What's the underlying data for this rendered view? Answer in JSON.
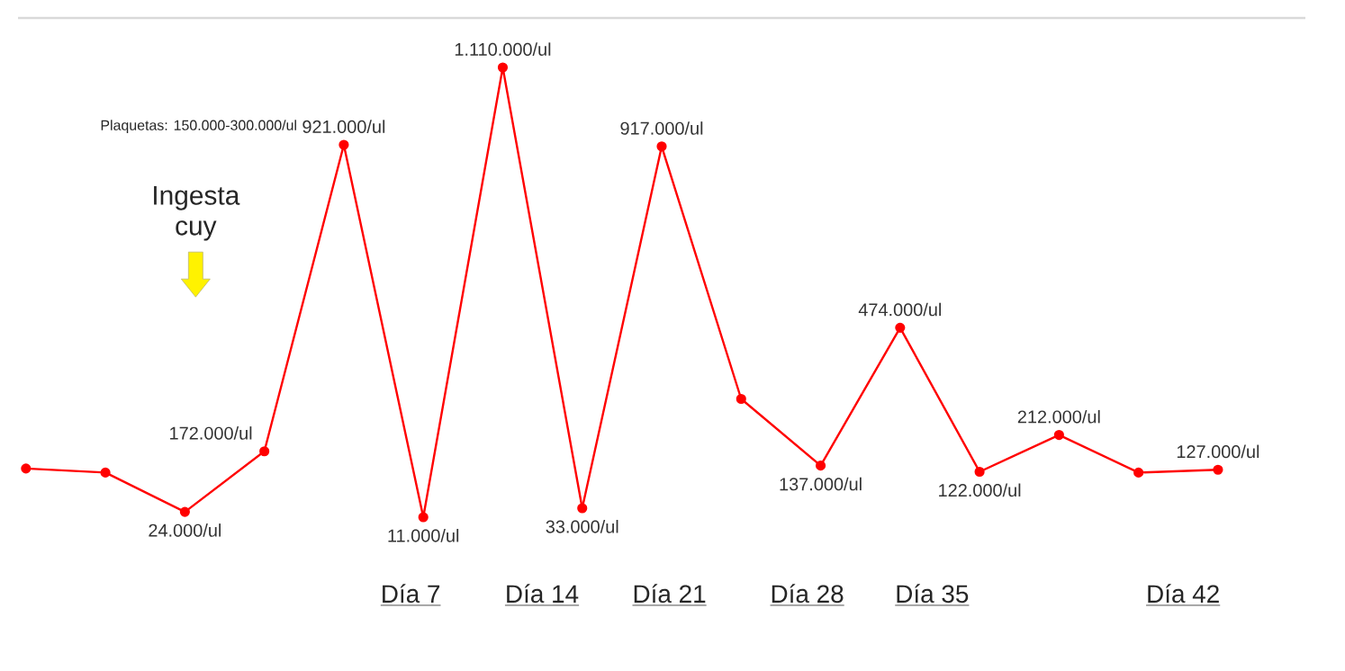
{
  "chart_data": {
    "type": "line",
    "categories": [
      null,
      null,
      null,
      null,
      null,
      null,
      null,
      null,
      null,
      null,
      null,
      null,
      null,
      null,
      null,
      null
    ],
    "series": [
      {
        "color": "#ff0000",
        "values": [
          130000,
          120000,
          24000,
          172000,
          921000,
          11000,
          1110000,
          33000,
          917000,
          300000,
          137000,
          474000,
          122000,
          212000,
          120000,
          127000
        ],
        "value_labels": [
          null,
          null,
          "24.000/ul",
          "172.000/ul",
          "921.000/ul",
          "11.000/ul",
          "1.110.000/ul",
          "33.000/ul",
          "917.000/ul",
          null,
          "137.000/ul",
          "474.000/ul",
          "122.000/ul",
          "212.000/ul",
          null,
          "127.000/ul"
        ]
      }
    ],
    "marker": "circle",
    "line_style": "solid",
    "annotations": [
      "Plaquetas: 150.000-300.000/ul",
      "Ingesta cuy",
      "Día 7",
      "Día 14",
      "Día 21",
      "Día 28",
      "Día 35",
      "Día 42"
    ]
  }
}
